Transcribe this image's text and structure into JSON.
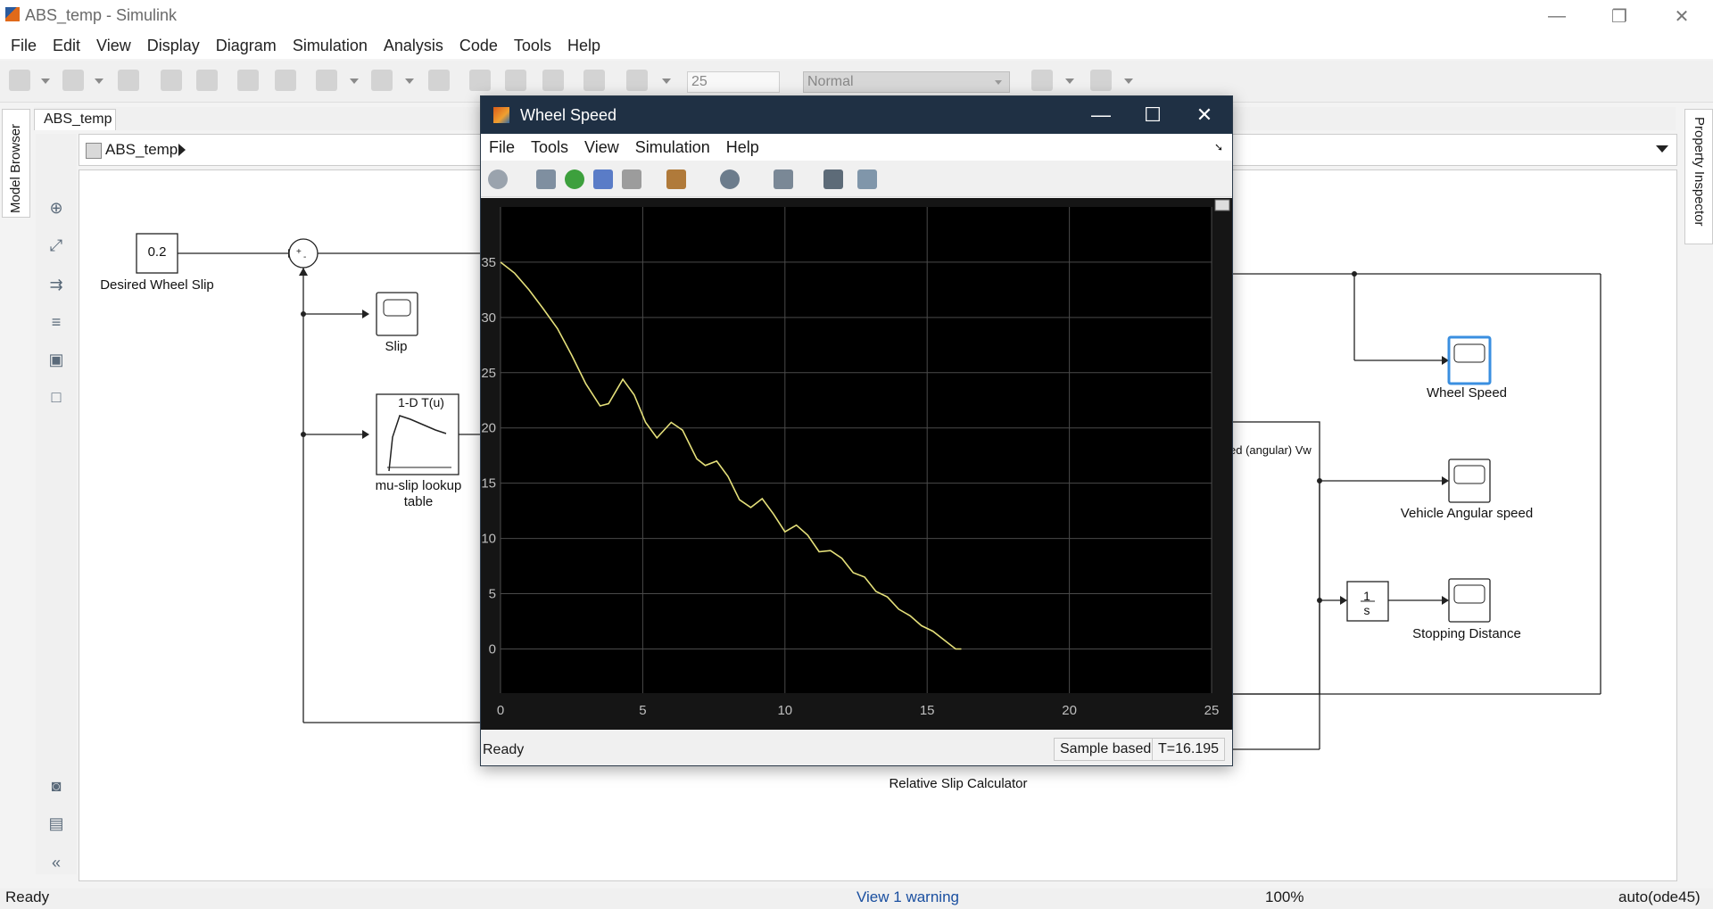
{
  "window": {
    "title": "ABS_temp - Simulink",
    "controls": {
      "minimize": "—",
      "restore": "❐",
      "close": "✕"
    }
  },
  "menu": [
    "File",
    "Edit",
    "View",
    "Display",
    "Diagram",
    "Simulation",
    "Analysis",
    "Code",
    "Tools",
    "Help"
  ],
  "toolbar": {
    "stop_time": "25",
    "sim_mode": "Normal"
  },
  "sidebar": {
    "model_browser": "Model Browser",
    "property_inspector": "Property Inspector"
  },
  "canvas": {
    "tab": "ABS_temp",
    "breadcrumb": "ABS_temp"
  },
  "blocks": {
    "constant_value": "0.2",
    "constant_label": "Desired Wheel Slip",
    "slip_scope": "Slip",
    "lookup_title": "1-D T(u)",
    "lookup_label_1": "mu-slip lookup",
    "lookup_label_2": "table",
    "wheel_speed_scope": "Wheel Speed",
    "vehicle_scope": "Vehicle Angular speed",
    "stopping_scope": "Stopping Distance",
    "integrator_num": "1",
    "integrator_den": "s",
    "subsystem_port": "ed (angular) Vw",
    "relative_slip": "Relative Slip Calculator"
  },
  "status": {
    "left": "Ready",
    "warning": "View 1 warning",
    "zoom": "100%",
    "solver": "auto(ode45)"
  },
  "scope": {
    "title": "Wheel Speed",
    "menu": [
      "File",
      "Tools",
      "View",
      "Simulation",
      "Help"
    ],
    "status": {
      "ready": "Ready",
      "mode": "Sample based",
      "time": "T=16.195"
    },
    "colors": {
      "trace": "#e5e07a",
      "background": "#000000",
      "grid": "#4a4a4a"
    }
  },
  "chart_data": {
    "type": "line",
    "title": "",
    "xlabel": "",
    "ylabel": "",
    "xlim": [
      0,
      25
    ],
    "ylim": [
      -4,
      40
    ],
    "xticks": [
      0,
      5,
      10,
      15,
      20,
      25
    ],
    "yticks": [
      0,
      5,
      10,
      15,
      20,
      25,
      30,
      35
    ],
    "grid": true,
    "series": [
      {
        "values_x": [
          0,
          0.5,
          1,
          1.5,
          2,
          2.5,
          3,
          3.5,
          3.8,
          4.3,
          4.7,
          5.1,
          5.5,
          6,
          6.4,
          6.9,
          7.2,
          7.6,
          8,
          8.4,
          8.8,
          9.2,
          9.6,
          10,
          10.4,
          10.8,
          11.2,
          11.6,
          12,
          12.4,
          12.8,
          13.2,
          13.6,
          14,
          14.4,
          14.8,
          15.2,
          15.6,
          16,
          16.2
        ],
        "values_y": [
          35,
          34,
          32.5,
          30.8,
          29,
          26.6,
          24,
          22,
          22.2,
          24.4,
          23,
          20.5,
          19.1,
          20.5,
          19.8,
          17.2,
          16.6,
          17,
          15.6,
          13.5,
          12.8,
          13.6,
          12.2,
          10.6,
          11.2,
          10.3,
          8.8,
          8.9,
          8.2,
          6.9,
          6.5,
          5.2,
          4.7,
          3.6,
          3,
          2.1,
          1.6,
          0.8,
          0,
          0
        ]
      }
    ]
  }
}
